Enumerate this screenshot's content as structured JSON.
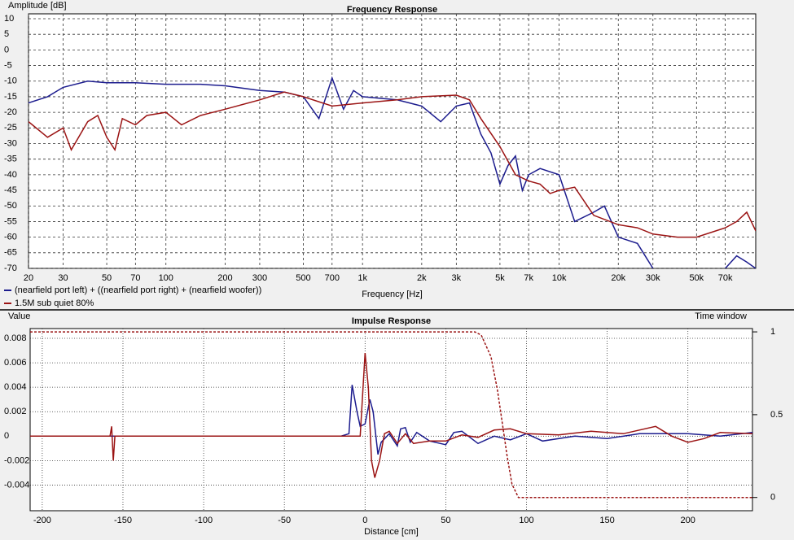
{
  "chart_data": [
    {
      "type": "line",
      "title": "Frequency Response",
      "ylabel": "Amplitude [dB]",
      "xlabel": "Frequency [Hz]",
      "xscale": "log",
      "grid": true,
      "legend": "below-left",
      "xlim": [
        20,
        100000
      ],
      "ylim": [
        -70,
        10
      ],
      "xticks": [
        20,
        30,
        50,
        70,
        100,
        200,
        300,
        500,
        700,
        {
          "value": 1000,
          "label": "1k"
        },
        {
          "value": 2000,
          "label": "2k"
        },
        {
          "value": 3000,
          "label": "3k"
        },
        {
          "value": 5000,
          "label": "5k"
        },
        {
          "value": 7000,
          "label": "7k"
        },
        {
          "value": 10000,
          "label": "10k"
        },
        {
          "value": 20000,
          "label": "20k"
        },
        {
          "value": 30000,
          "label": "30k"
        },
        {
          "value": 50000,
          "label": "50k"
        },
        {
          "value": 70000,
          "label": "70k"
        }
      ],
      "yticks": [
        10,
        5,
        0,
        -5,
        -10,
        -15,
        -20,
        -25,
        -30,
        -35,
        -40,
        -45,
        -50,
        -55,
        -60,
        -65,
        -70
      ],
      "series": [
        {
          "name": "(nearfield port left) + ((nearfield port right) + (nearfield woofer))",
          "color": "#1c1c8e",
          "x": [
            20,
            25,
            30,
            40,
            50,
            70,
            100,
            150,
            200,
            300,
            400,
            500,
            600,
            700,
            800,
            900,
            1000,
            1500,
            2000,
            2500,
            3000,
            3500,
            4000,
            4500,
            5000,
            5500,
            6000,
            6500,
            7000,
            8000,
            10000,
            12000,
            15000,
            17000,
            20000,
            25000,
            30000,
            40000,
            60000,
            70000,
            80000,
            90000,
            100000
          ],
          "values": [
            -17,
            -15,
            -12,
            -10,
            -10.5,
            -10.5,
            -11,
            -11,
            -11.5,
            -13,
            -13.5,
            -15,
            -22,
            -9,
            -19,
            -13,
            -15,
            -16,
            -18,
            -23,
            -18,
            -17,
            -27,
            -33,
            -43,
            -37,
            -34,
            -45,
            -40,
            -38,
            -40,
            -55,
            -52,
            -50,
            -60,
            -62,
            -70,
            null,
            null,
            -70,
            -66,
            -68,
            -70
          ]
        },
        {
          "name": "1.5M sub quiet 80%",
          "color": "#9b1414",
          "x": [
            20,
            25,
            30,
            33,
            40,
            45,
            50,
            55,
            60,
            70,
            80,
            100,
            120,
            150,
            200,
            300,
            400,
            500,
            700,
            1000,
            1500,
            2000,
            3000,
            3500,
            4000,
            5000,
            6000,
            7000,
            8000,
            9000,
            10000,
            12000,
            15000,
            20000,
            25000,
            30000,
            40000,
            50000,
            70000,
            80000,
            90000,
            100000
          ],
          "values": [
            -23,
            -28,
            -25,
            -32,
            -23,
            -21,
            -28,
            -32,
            -22,
            -24,
            -21,
            -20,
            -24,
            -21,
            -19,
            -16,
            -13.5,
            -15,
            -18,
            -17,
            -16,
            -15,
            -14.5,
            -16,
            -22,
            -31,
            -40,
            -42,
            -43,
            -46,
            -45,
            -44,
            -53,
            -56,
            -57,
            -59,
            -60,
            -60,
            -57,
            -55,
            -52,
            -58
          ]
        }
      ]
    },
    {
      "type": "line",
      "title": "Impulse Response",
      "ylabel": "Value",
      "y2label": "Time window",
      "xlabel": "Distance [cm]",
      "grid": true,
      "xlim": [
        -207.5,
        240
      ],
      "ylim": [
        -0.0061,
        0.0088
      ],
      "y2lim": [
        -0.08,
        1.02
      ],
      "xticks": [
        -200,
        -150,
        -100,
        -50,
        0,
        50,
        100,
        150,
        200
      ],
      "yticks": [
        0.008,
        0.006,
        0.004,
        0.002,
        0,
        -0.002,
        -0.004
      ],
      "y2ticks": [
        1,
        0.5,
        0
      ],
      "series": [
        {
          "color": "#1c1c8e",
          "x": [
            -207.5,
            -15,
            -10,
            -8,
            -5,
            -3,
            0,
            3,
            5,
            8,
            10,
            15,
            20,
            22,
            25,
            28,
            32,
            40,
            50,
            55,
            60,
            70,
            80,
            90,
            100,
            110,
            130,
            150,
            170,
            200,
            220,
            240
          ],
          "values": [
            0,
            0,
            0.0002,
            0.0042,
            0.002,
            0.0008,
            0.001,
            0.003,
            0.002,
            -0.0015,
            -0.0005,
            0.0002,
            -0.0008,
            0.0006,
            0.0007,
            -0.0005,
            0.0003,
            -0.0004,
            -0.0007,
            0.0003,
            0.0004,
            -0.0006,
            0,
            -0.0003,
            0.0002,
            -0.0004,
            0,
            -0.0002,
            0.0002,
            0.0002,
            0,
            0.0003
          ]
        },
        {
          "color": "#9b1414",
          "x": [
            -207.5,
            -158,
            -157,
            -156,
            -155,
            -10,
            -3,
            0,
            2,
            4,
            6,
            9,
            12,
            15,
            20,
            25,
            30,
            40,
            50,
            60,
            70,
            80,
            90,
            100,
            120,
            140,
            160,
            180,
            190,
            200,
            210,
            220,
            240
          ],
          "values": [
            0,
            0,
            0.0008,
            -0.002,
            0,
            0,
            0,
            0.0068,
            0.004,
            -0.002,
            -0.0034,
            -0.002,
            0.0002,
            0.0004,
            -0.0006,
            0.0002,
            -0.0006,
            -0.0004,
            -0.0004,
            0.0001,
            -0.0001,
            0.0005,
            0.0006,
            0.0002,
            0.0001,
            0.0004,
            0.0002,
            0.0008,
            0,
            -0.0005,
            -0.0002,
            0.0003,
            0.0002
          ]
        },
        {
          "color": "#9b1414",
          "axis": "y2",
          "style": "dashed",
          "x": [
            -207.5,
            68,
            72,
            78,
            82,
            85,
            88,
            91,
            95,
            240
          ],
          "values": [
            1,
            1,
            0.98,
            0.85,
            0.65,
            0.45,
            0.25,
            0.08,
            0,
            0
          ]
        }
      ]
    }
  ]
}
